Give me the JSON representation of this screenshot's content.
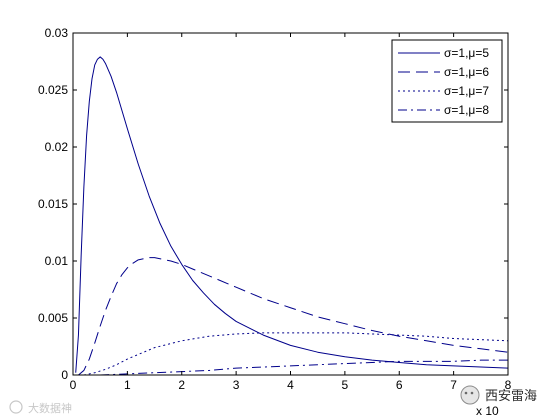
{
  "chart_data": {
    "type": "line",
    "title": "",
    "xlabel": "",
    "ylabel": "",
    "xlim": [
      0,
      8
    ],
    "ylim": [
      0,
      0.03
    ],
    "x_ticks": [
      "0",
      "1",
      "2",
      "3",
      "4",
      "5",
      "6",
      "7",
      "8"
    ],
    "y_ticks": [
      "0",
      "0.005",
      "0.01",
      "0.015",
      "0.02",
      "0.025",
      "0.03"
    ],
    "x_exponent_label": "x 10",
    "grid": false,
    "legend_position": "top-right",
    "series": [
      {
        "name": "σ=1,μ=5",
        "line_style": "solid",
        "points": [
          [
            0.05,
            0.0002
          ],
          [
            0.1,
            0.0035
          ],
          [
            0.15,
            0.0105
          ],
          [
            0.2,
            0.0165
          ],
          [
            0.25,
            0.021
          ],
          [
            0.3,
            0.024
          ],
          [
            0.35,
            0.026
          ],
          [
            0.4,
            0.0272
          ],
          [
            0.45,
            0.0277
          ],
          [
            0.5,
            0.0279
          ],
          [
            0.55,
            0.0277
          ],
          [
            0.6,
            0.0273
          ],
          [
            0.7,
            0.0262
          ],
          [
            0.8,
            0.0248
          ],
          [
            0.9,
            0.0232
          ],
          [
            1.0,
            0.0216
          ],
          [
            1.2,
            0.0185
          ],
          [
            1.4,
            0.0157
          ],
          [
            1.6,
            0.0133
          ],
          [
            1.8,
            0.0113
          ],
          [
            2.0,
            0.0097
          ],
          [
            2.2,
            0.0083
          ],
          [
            2.4,
            0.0072
          ],
          [
            2.6,
            0.0062
          ],
          [
            2.8,
            0.0054
          ],
          [
            3.0,
            0.0047
          ],
          [
            3.5,
            0.0035
          ],
          [
            4.0,
            0.0026
          ],
          [
            4.5,
            0.002
          ],
          [
            5.0,
            0.0016
          ],
          [
            5.5,
            0.0013
          ],
          [
            6.0,
            0.0011
          ],
          [
            6.5,
            0.0009
          ],
          [
            7.0,
            0.0008
          ],
          [
            7.5,
            0.0007
          ],
          [
            8.0,
            0.0006
          ]
        ]
      },
      {
        "name": "σ=1,μ=6",
        "line_style": "dashed",
        "points": [
          [
            0.1,
            0.0
          ],
          [
            0.2,
            0.0004
          ],
          [
            0.3,
            0.0014
          ],
          [
            0.4,
            0.0028
          ],
          [
            0.5,
            0.0043
          ],
          [
            0.6,
            0.0057
          ],
          [
            0.7,
            0.0069
          ],
          [
            0.8,
            0.008
          ],
          [
            0.9,
            0.0088
          ],
          [
            1.0,
            0.0094
          ],
          [
            1.1,
            0.0098
          ],
          [
            1.2,
            0.0101
          ],
          [
            1.3,
            0.0102
          ],
          [
            1.4,
            0.0103
          ],
          [
            1.5,
            0.0103
          ],
          [
            1.6,
            0.0102
          ],
          [
            1.8,
            0.01
          ],
          [
            2.0,
            0.0097
          ],
          [
            2.2,
            0.0093
          ],
          [
            2.5,
            0.0087
          ],
          [
            3.0,
            0.0077
          ],
          [
            3.5,
            0.0067
          ],
          [
            4.0,
            0.0059
          ],
          [
            4.5,
            0.0051
          ],
          [
            5.0,
            0.0045
          ],
          [
            5.5,
            0.0039
          ],
          [
            6.0,
            0.0034
          ],
          [
            6.5,
            0.003
          ],
          [
            7.0,
            0.0026
          ],
          [
            7.5,
            0.0023
          ],
          [
            8.0,
            0.002
          ]
        ]
      },
      {
        "name": "σ=1,μ=7",
        "line_style": "dotted",
        "points": [
          [
            0.2,
            0.0
          ],
          [
            0.4,
            0.0002
          ],
          [
            0.6,
            0.0005
          ],
          [
            0.8,
            0.0009
          ],
          [
            1.0,
            0.0014
          ],
          [
            1.2,
            0.0018
          ],
          [
            1.5,
            0.0024
          ],
          [
            2.0,
            0.003
          ],
          [
            2.5,
            0.0034
          ],
          [
            3.0,
            0.0036
          ],
          [
            3.5,
            0.0037
          ],
          [
            4.0,
            0.0037
          ],
          [
            4.5,
            0.0037
          ],
          [
            5.0,
            0.0037
          ],
          [
            5.5,
            0.0036
          ],
          [
            6.0,
            0.0035
          ],
          [
            6.5,
            0.0034
          ],
          [
            7.0,
            0.0032
          ],
          [
            7.5,
            0.0031
          ],
          [
            8.0,
            0.003
          ]
        ]
      },
      {
        "name": "σ=1,μ=8",
        "line_style": "dashdot",
        "points": [
          [
            0.5,
            0.0
          ],
          [
            1.0,
            0.0001
          ],
          [
            1.5,
            0.0002
          ],
          [
            2.0,
            0.0003
          ],
          [
            2.5,
            0.0004
          ],
          [
            3.0,
            0.0006
          ],
          [
            3.5,
            0.0007
          ],
          [
            4.0,
            0.0008
          ],
          [
            4.5,
            0.0009
          ],
          [
            5.0,
            0.001
          ],
          [
            5.5,
            0.0011
          ],
          [
            6.0,
            0.0012
          ],
          [
            6.5,
            0.0012
          ],
          [
            7.0,
            0.0012
          ],
          [
            7.5,
            0.0013
          ],
          [
            8.0,
            0.0013
          ]
        ]
      }
    ]
  },
  "watermark": {
    "left_text": "大数据神",
    "right_text": "西安雷海"
  },
  "colors": {
    "series_line": "#00008b",
    "axis": "#000000",
    "background": "#ffffff",
    "legend_border": "#000000"
  }
}
